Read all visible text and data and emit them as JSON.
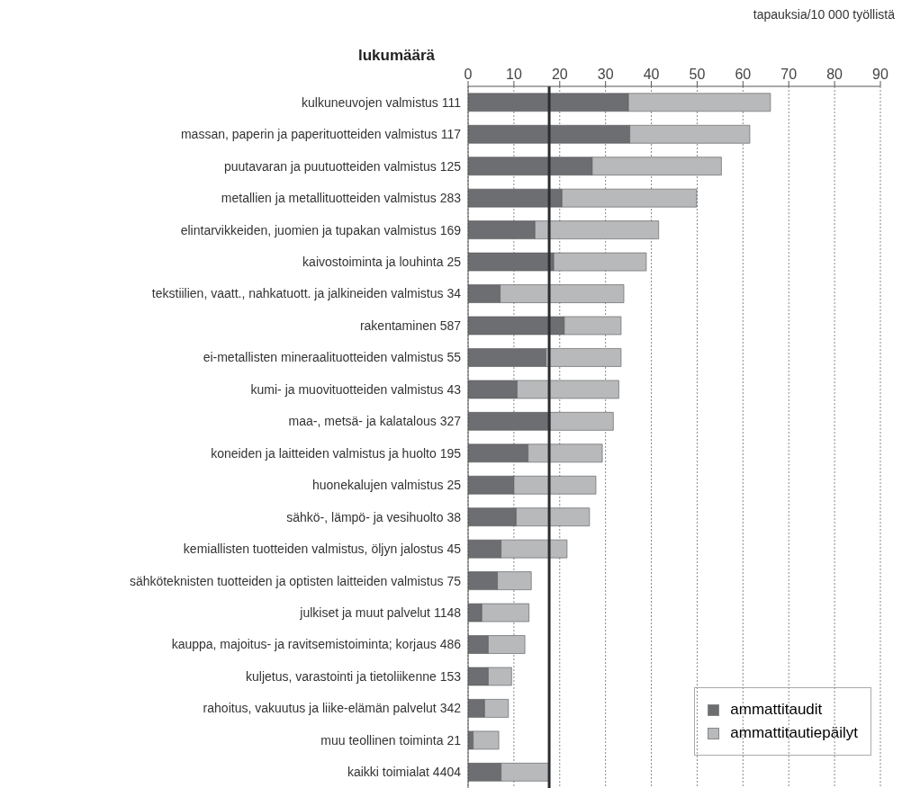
{
  "chart_data": {
    "type": "bar",
    "orientation": "horizontal",
    "stacked": true,
    "xlabel": "tapauksia/10 000 työllistä",
    "ylabel": "lukumäärä",
    "categories": [
      "kulkuneuvojen valmistus 111",
      "massan, paperin ja paperituotteiden valmistus 117",
      "puutavaran ja puutuotteiden valmistus 125",
      "metallien ja metallituotteiden valmistus 283",
      "elintarvikkeiden, juomien ja tupakan valmistus 169",
      "kaivostoiminta ja louhinta 25",
      "tekstiilien, vaatt., nahkatuott. ja jalkineiden valmistus 34",
      "rakentaminen 587",
      "ei-metallisten mineraalituotteiden valmistus 55",
      "kumi- ja muovituotteiden valmistus 43",
      "maa-, metsä- ja kalatalous 327",
      "koneiden ja laitteiden valmistus ja huolto 195",
      "huonekalujen valmistus 25",
      "sähkö-, lämpö- ja vesihuolto 38",
      "kemiallisten tuotteiden valmistus, öljyn jalostus 45",
      "sähköteknisten tuotteiden ja optisten laitteiden valmistus 75",
      "julkiset ja muut palvelut 1148",
      "kauppa, majoitus- ja ravitsemistoiminta; korjaus 486",
      "kuljetus, varastointi ja tietoliikenne 153",
      "rahoitus, vakuutus ja liike-elämän palvelut 342",
      "muu teollinen toiminta 21",
      "kaikki toimialat 4404"
    ],
    "series": [
      {
        "name": "ammattitaudit",
        "color": "#6d6e71",
        "values": [
          35.0,
          35.3,
          27.1,
          20.5,
          14.6,
          18.7,
          7.0,
          21.0,
          17.0,
          10.7,
          17.9,
          13.1,
          10.0,
          10.5,
          7.2,
          6.4,
          3.0,
          4.4,
          4.4,
          3.6,
          1.1,
          7.2
        ]
      },
      {
        "name": "ammattitautiepäilyt",
        "color": "#b8b9bb",
        "values": [
          31.0,
          26.2,
          28.2,
          29.4,
          27.0,
          20.2,
          27.0,
          12.4,
          16.4,
          22.2,
          13.8,
          16.2,
          17.9,
          16.0,
          14.4,
          7.4,
          10.3,
          8.0,
          5.1,
          5.2,
          5.6,
          10.5
        ]
      }
    ],
    "xlim": [
      0,
      90
    ],
    "xticks": [
      0,
      10,
      20,
      30,
      40,
      50,
      60,
      70,
      80,
      90
    ],
    "grid": "x",
    "legend": "bottom right",
    "ref_lines": [
      {
        "axis": "x",
        "value": 17.7,
        "color": "#2b2d31"
      }
    ]
  }
}
